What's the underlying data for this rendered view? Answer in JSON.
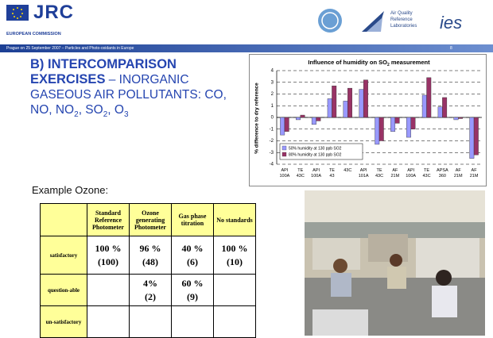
{
  "header": {
    "logo": "JRC",
    "org": "EUROPEAN COMMISSION",
    "partner": [
      "Air Quality",
      "Reference",
      "Laboratories"
    ],
    "partner2": "ies",
    "footer": "Prague on 25 September 2007 – Particles and Photo-oxidants in Europe",
    "page": "8"
  },
  "title": {
    "bold": "B) INTERCOMPARISON EXERCISES",
    "rest": [
      " – INORGANIC GASEOUS AIR POLLUTANTS: CO, NO, NO",
      "2",
      ", SO",
      "2",
      ", O",
      "3"
    ]
  },
  "example": "Example Ozone:",
  "table": {
    "header": [
      "Standard Reference Photometer",
      "Ozone generating Photometer",
      "Gas phase titration",
      "No standards"
    ],
    "rows": [
      {
        "label": "satisfactory",
        "cells": [
          {
            "value": "100 %",
            "count": "(100)"
          },
          {
            "value": "96 %",
            "count": "(48)"
          },
          {
            "value": "40 %",
            "count": "(6)"
          },
          {
            "value": "100 %",
            "count": "(10)"
          }
        ]
      },
      {
        "label": "question-able",
        "cells": [
          null,
          {
            "value": "4%",
            "count": "(2)"
          },
          {
            "value": "60 %",
            "count": "(9)"
          },
          null
        ]
      },
      {
        "label": "un-satisfactory",
        "cells": [
          null,
          null,
          null,
          null
        ]
      }
    ]
  },
  "chart_data": {
    "type": "bar",
    "title": [
      "Influence of humidity on SO",
      "2",
      " measurement"
    ],
    "ylabel": "% difference to dry reference",
    "categories": [
      "API 100A",
      "TE 43C",
      "API 100A",
      "TE 43",
      "43C",
      "API 101A",
      "TE 43C",
      "AF 21M",
      "API 100A",
      "TE 43C",
      "APSA 360",
      "AF 21M",
      "AF 21M"
    ],
    "series": [
      {
        "name": "50% humidity at 130 ppb SO2",
        "color": "#9999ff",
        "values": [
          -1.5,
          -0.2,
          -0.6,
          1.6,
          1.4,
          2.4,
          -2.3,
          -1.2,
          -1.7,
          1.9,
          0.9,
          -0.2,
          -3.5
        ]
      },
      {
        "name": "80% humidity at 130 ppb SO2",
        "color": "#993366",
        "values": [
          -1.2,
          0.2,
          -0.3,
          2.7,
          2.5,
          3.2,
          -2.0,
          -0.5,
          -1.0,
          3.4,
          1.7,
          -0.1,
          -3.2
        ]
      }
    ],
    "ylim": [
      -4,
      4
    ],
    "yticks": [
      -4,
      -3,
      -2,
      -1,
      0,
      1,
      2,
      3,
      4
    ],
    "grid": true,
    "legend": "lower left"
  }
}
